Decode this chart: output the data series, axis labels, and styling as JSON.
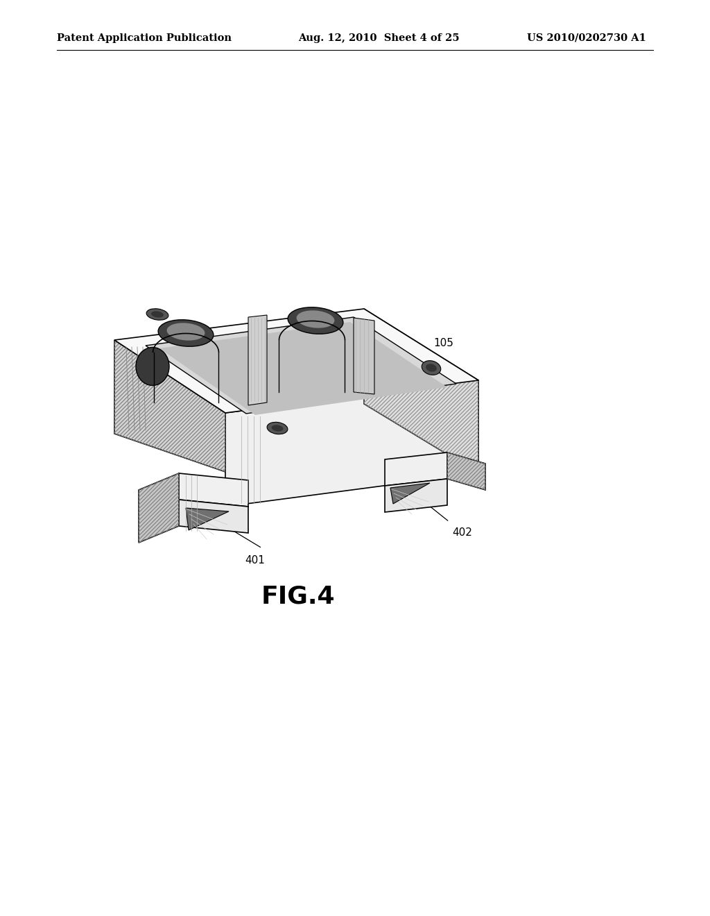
{
  "bg_color": "#ffffff",
  "header_left": "Patent Application Publication",
  "header_center": "Aug. 12, 2010  Sheet 4 of 25",
  "header_right": "US 2010/0202730 A1",
  "fig_label": "FIG.4",
  "ref_105": "105",
  "ref_401": "401",
  "ref_402": "402",
  "line_color": "#000000",
  "hatch_color": "#555555",
  "face_light": "#f8f8f8",
  "face_mid": "#e0e0e0",
  "face_dark": "#b8b8b8",
  "face_darkest": "#888888",
  "cavity_color": "#c8c8c8",
  "deep_color": "#404040"
}
